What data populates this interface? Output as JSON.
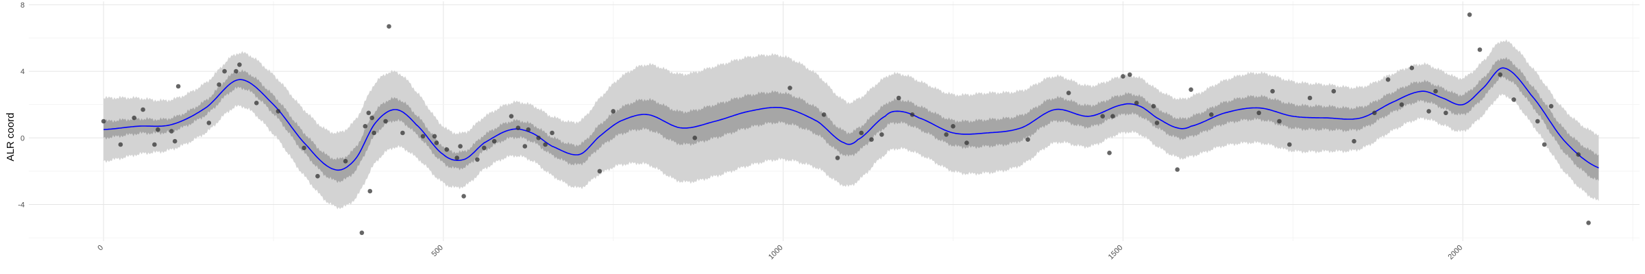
{
  "chart_data": {
    "type": "line",
    "title": "",
    "xlabel": "",
    "ylabel": "ALR coord",
    "xlim": [
      -110,
      2260
    ],
    "ylim": [
      -6.2,
      8.2
    ],
    "x_ticks": [
      0,
      500,
      1000,
      1500,
      2000
    ],
    "x_tick_labels": [
      "0",
      "500",
      "1000",
      "1500",
      "2000"
    ],
    "y_ticks": [
      -4,
      0,
      4,
      8
    ],
    "y_tick_labels": [
      "-4",
      "0",
      "4",
      "8"
    ],
    "grid": true,
    "legend": "none",
    "colors": {
      "line": "#0000ff",
      "inner_band": "#a6a6a6",
      "outer_band": "#d3d3d3",
      "points": "#333333",
      "grid_major": "#e5e5e5",
      "grid_minor": "#f2f2f2"
    },
    "series": [
      {
        "kind": "fitted_line",
        "x": [
          0,
          50,
          100,
          150,
          200,
          250,
          300,
          340,
          370,
          400,
          430,
          460,
          500,
          530,
          560,
          600,
          630,
          660,
          700,
          730,
          760,
          800,
          850,
          900,
          950,
          1000,
          1050,
          1090,
          1110,
          1150,
          1170,
          1200,
          1250,
          1300,
          1350,
          1400,
          1450,
          1500,
          1525,
          1550,
          1580,
          1600,
          1650,
          1700,
          1750,
          1800,
          1850,
          1900,
          1940,
          1970,
          2000,
          2030,
          2060,
          2100,
          2150,
          2200
        ],
        "y": [
          0.5,
          0.7,
          0.8,
          1.8,
          3.5,
          2.0,
          -0.5,
          -1.9,
          -1.3,
          0.9,
          1.7,
          0.8,
          -1.0,
          -1.3,
          -0.3,
          0.5,
          0.3,
          -0.5,
          -1.0,
          0.1,
          1.0,
          1.4,
          0.6,
          1.0,
          1.6,
          1.8,
          1.0,
          -0.3,
          -0.1,
          1.3,
          1.6,
          1.2,
          0.3,
          0.3,
          0.6,
          1.7,
          1.3,
          2.0,
          1.9,
          1.2,
          0.6,
          0.7,
          1.5,
          1.8,
          1.3,
          1.2,
          1.2,
          2.2,
          2.8,
          2.4,
          2.0,
          3.0,
          4.2,
          2.6,
          -0.2,
          -1.8
        ]
      },
      {
        "kind": "band_inner_halfwidth",
        "x": [
          0,
          100,
          200,
          300,
          400,
          500,
          600,
          700,
          800,
          900,
          1000,
          1100,
          1200,
          1300,
          1400,
          1500,
          1600,
          1700,
          1800,
          1900,
          2000,
          2100,
          2200
        ],
        "halfwidth": [
          0.5,
          0.4,
          0.5,
          0.6,
          0.7,
          0.5,
          0.5,
          0.6,
          0.9,
          1.0,
          0.9,
          0.7,
          0.7,
          0.8,
          0.7,
          0.6,
          0.6,
          0.7,
          0.7,
          0.6,
          0.6,
          0.6,
          0.8
        ]
      },
      {
        "kind": "band_outer_halfwidth",
        "x": [
          0,
          100,
          200,
          300,
          400,
          500,
          600,
          700,
          800,
          900,
          1000,
          1100,
          1200,
          1300,
          1400,
          1500,
          1600,
          1700,
          1800,
          1900,
          2000,
          2100,
          2200
        ],
        "halfwidth": [
          1.9,
          1.5,
          1.6,
          2.0,
          2.4,
          1.7,
          1.6,
          2.0,
          3.0,
          3.3,
          3.1,
          2.5,
          2.2,
          2.4,
          2.0,
          1.7,
          1.8,
          2.1,
          2.0,
          1.7,
          1.6,
          1.7,
          2.0
        ]
      },
      {
        "kind": "observations",
        "points": [
          [
            0,
            1.0
          ],
          [
            25,
            -0.4
          ],
          [
            45,
            1.2
          ],
          [
            58,
            1.7
          ],
          [
            75,
            -0.4
          ],
          [
            80,
            0.5
          ],
          [
            100,
            0.4
          ],
          [
            105,
            -0.2
          ],
          [
            110,
            3.1
          ],
          [
            155,
            0.9
          ],
          [
            170,
            3.2
          ],
          [
            178,
            4.0
          ],
          [
            195,
            4.0
          ],
          [
            200,
            4.4
          ],
          [
            225,
            2.1
          ],
          [
            257,
            1.6
          ],
          [
            295,
            -0.6
          ],
          [
            315,
            -2.3
          ],
          [
            356,
            -1.4
          ],
          [
            380,
            -5.7
          ],
          [
            385,
            0.7
          ],
          [
            390,
            1.5
          ],
          [
            392,
            -3.2
          ],
          [
            395,
            1.2
          ],
          [
            398,
            0.3
          ],
          [
            415,
            1.0
          ],
          [
            420,
            6.7
          ],
          [
            440,
            0.3
          ],
          [
            470,
            0.1
          ],
          [
            487,
            0.1
          ],
          [
            490,
            -0.3
          ],
          [
            505,
            -0.7
          ],
          [
            520,
            -1.2
          ],
          [
            525,
            -0.5
          ],
          [
            530,
            -3.5
          ],
          [
            550,
            -1.3
          ],
          [
            560,
            -0.6
          ],
          [
            575,
            -0.2
          ],
          [
            600,
            1.3
          ],
          [
            610,
            0.6
          ],
          [
            620,
            -0.5
          ],
          [
            625,
            0.5
          ],
          [
            640,
            0.0
          ],
          [
            650,
            -0.4
          ],
          [
            660,
            0.3
          ],
          [
            730,
            -2.0
          ],
          [
            750,
            1.6
          ],
          [
            870,
            0.0
          ],
          [
            1010,
            3.0
          ],
          [
            1060,
            1.4
          ],
          [
            1080,
            -1.2
          ],
          [
            1115,
            0.3
          ],
          [
            1130,
            -0.1
          ],
          [
            1145,
            0.2
          ],
          [
            1170,
            2.4
          ],
          [
            1190,
            1.4
          ],
          [
            1240,
            0.2
          ],
          [
            1250,
            0.7
          ],
          [
            1270,
            -0.3
          ],
          [
            1360,
            -0.1
          ],
          [
            1420,
            2.7
          ],
          [
            1470,
            1.3
          ],
          [
            1480,
            -0.9
          ],
          [
            1485,
            1.3
          ],
          [
            1500,
            3.7
          ],
          [
            1510,
            3.8
          ],
          [
            1520,
            2.1
          ],
          [
            1545,
            1.9
          ],
          [
            1550,
            0.9
          ],
          [
            1580,
            -1.9
          ],
          [
            1600,
            2.9
          ],
          [
            1630,
            1.4
          ],
          [
            1700,
            1.5
          ],
          [
            1720,
            2.8
          ],
          [
            1730,
            1.0
          ],
          [
            1745,
            -0.4
          ],
          [
            1775,
            2.4
          ],
          [
            1810,
            2.8
          ],
          [
            1840,
            -0.2
          ],
          [
            1870,
            1.5
          ],
          [
            1890,
            3.5
          ],
          [
            1910,
            2.0
          ],
          [
            1925,
            4.2
          ],
          [
            1950,
            1.6
          ],
          [
            1960,
            2.8
          ],
          [
            1975,
            1.5
          ],
          [
            2010,
            7.4
          ],
          [
            2025,
            5.3
          ],
          [
            2055,
            3.8
          ],
          [
            2075,
            2.3
          ],
          [
            2110,
            1.0
          ],
          [
            2120,
            -0.4
          ],
          [
            2130,
            1.9
          ],
          [
            2170,
            -1.0
          ],
          [
            2185,
            -5.1
          ]
        ]
      }
    ]
  }
}
